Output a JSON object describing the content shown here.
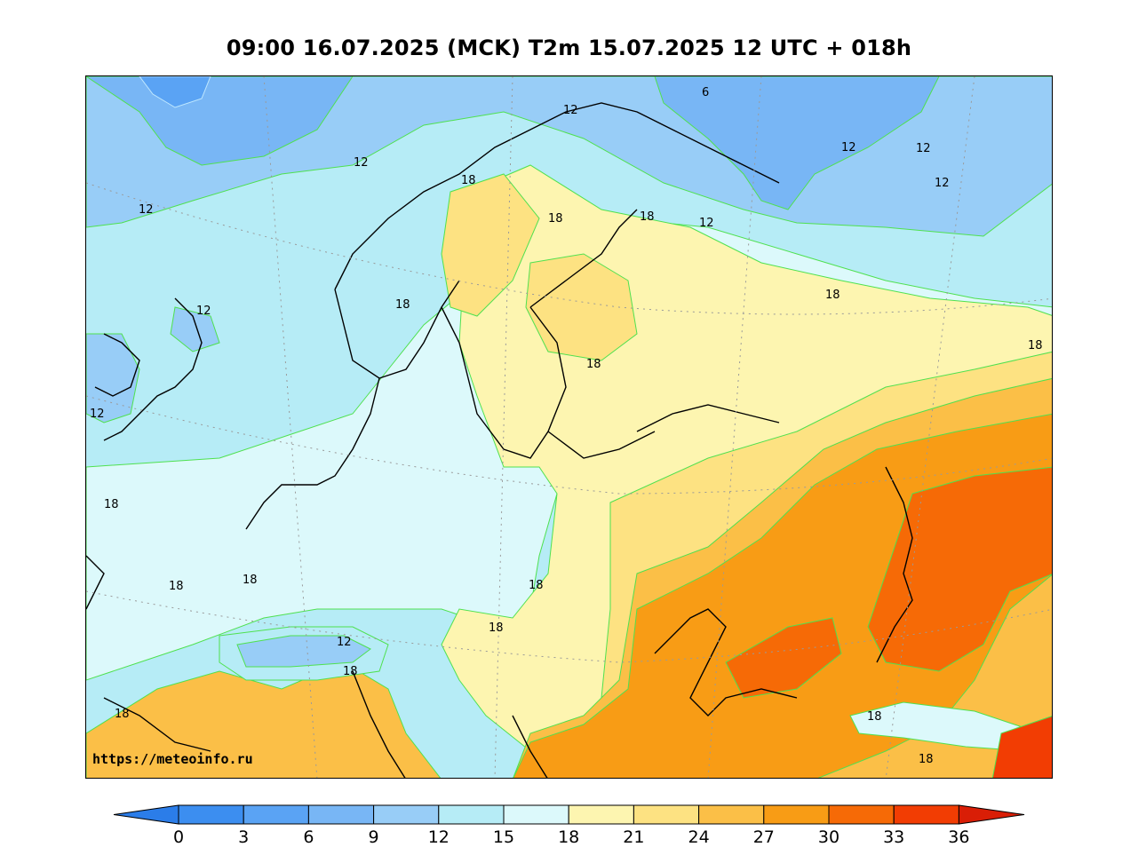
{
  "title": "09:00 16.07.2025 (MCK) T2m 15.07.2025 12 UTC + 018h",
  "watermark": "https://meteoinfo.ru",
  "legend": {
    "ticks": [
      "0",
      "3",
      "6",
      "9",
      "12",
      "15",
      "18",
      "21",
      "24",
      "27",
      "30",
      "33",
      "36"
    ],
    "colors": {
      "under_0": "#2b7de9",
      "t0_3": "#3c8ef0",
      "t3_6": "#5aa3f4",
      "t6_9": "#78b6f5",
      "t9_12": "#98cdf7",
      "t12_15": "#b6ecf6",
      "t15_18": "#dcf9fb",
      "t18_21": "#fdf5b0",
      "t21_24": "#fde282",
      "t24_27": "#fbbf47",
      "t27_30": "#f89c15",
      "t30_33": "#f66a06",
      "t33_36": "#f23d03",
      "over_36": "#d91e06"
    }
  },
  "contour_labels": [
    {
      "text": "6"
    },
    {
      "text": "12"
    },
    {
      "text": "12"
    },
    {
      "text": "12"
    },
    {
      "text": "12"
    },
    {
      "text": "12"
    },
    {
      "text": "12"
    },
    {
      "text": "12"
    },
    {
      "text": "12"
    },
    {
      "text": "12"
    },
    {
      "text": "12"
    },
    {
      "text": "18"
    },
    {
      "text": "18"
    },
    {
      "text": "18"
    },
    {
      "text": "18"
    },
    {
      "text": "18"
    },
    {
      "text": "18"
    },
    {
      "text": "18"
    },
    {
      "text": "18"
    },
    {
      "text": "18"
    },
    {
      "text": "18"
    },
    {
      "text": "18"
    },
    {
      "text": "18"
    },
    {
      "text": "18"
    },
    {
      "text": "18"
    },
    {
      "text": "18"
    },
    {
      "text": "18"
    }
  ]
}
